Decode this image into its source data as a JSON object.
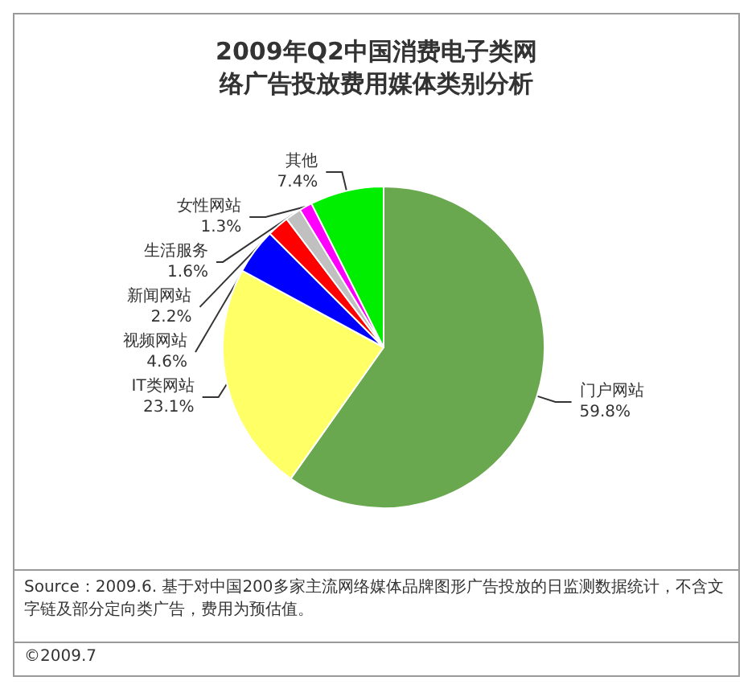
{
  "chart_data": {
    "type": "pie",
    "title": "2009年Q2中国消费电子类网络广告投放费用媒体类别分析",
    "categories": [
      "门户网站",
      "IT类网站",
      "视频网站",
      "新闻网站",
      "生活服务",
      "女性网站",
      "其他"
    ],
    "values": [
      59.8,
      23.1,
      4.6,
      2.2,
      1.6,
      1.3,
      7.4
    ],
    "colors": [
      "#6aa84f",
      "#ffff66",
      "#0000ff",
      "#ff0000",
      "#c0c0c0",
      "#ff00ff",
      "#00ee00"
    ],
    "value_labels": [
      "59.8%",
      "23.1%",
      "4.6%",
      "2.2%",
      "1.6%",
      "1.3%",
      "7.4%"
    ],
    "legend": false,
    "annotations": [
      "Source：2009.6. 基于对中国200多家主流网络媒体品牌图形广告投放的日监测数据统计，不含文字链及部分定向类广告，费用为预估值。",
      "©2009.7"
    ]
  }
}
